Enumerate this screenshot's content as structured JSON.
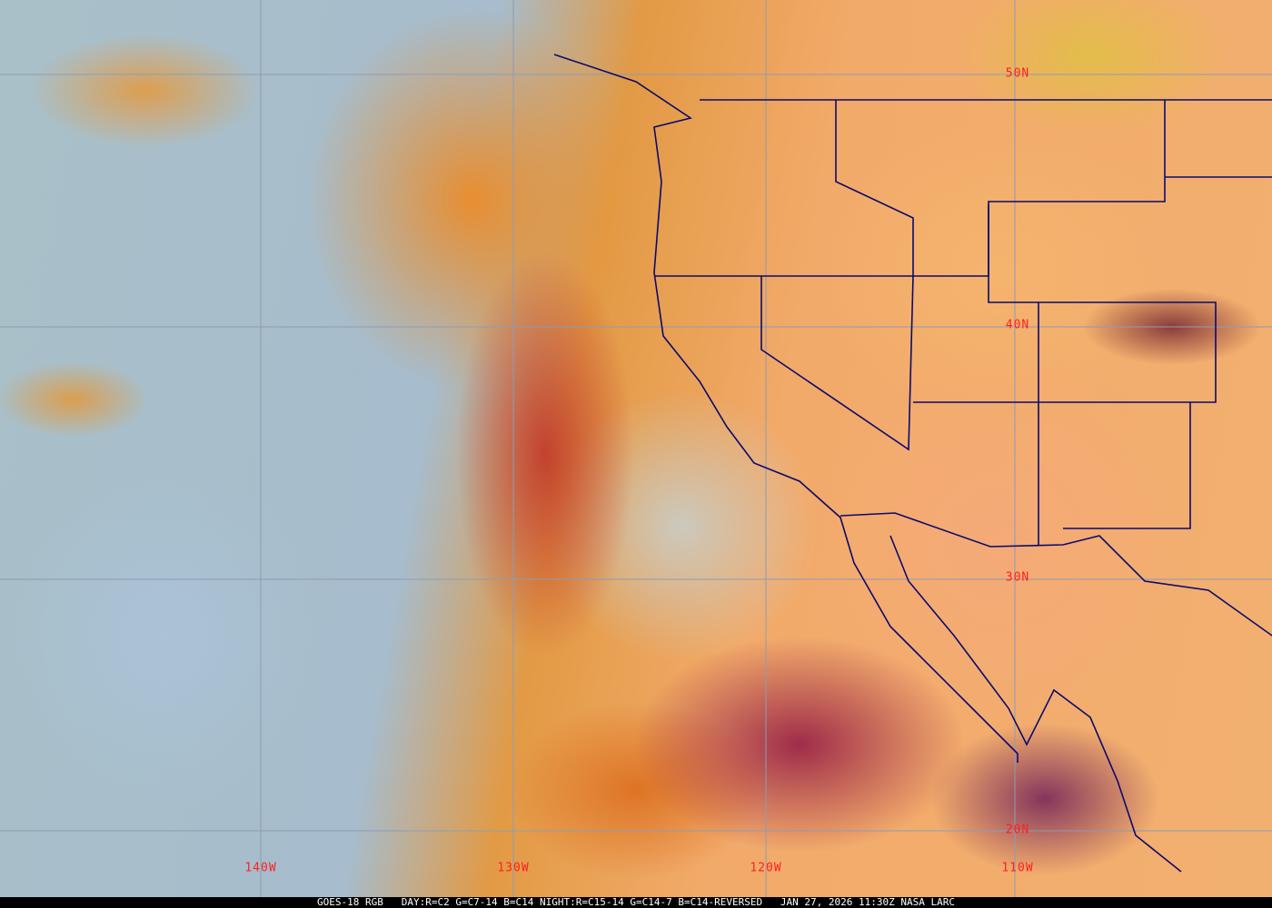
{
  "caption": "GOES-18 RGB   DAY:R=C2 G=C7-14 B=C14 NIGHT:R=C15-14 G=C14-7 B=C14-REVERSED   JAN 27, 2026 11:30Z NASA LARC",
  "grid": {
    "latitudes": [
      "50N",
      "40N",
      "30N",
      "20N"
    ],
    "longitudes": [
      "140W",
      "130W",
      "120W",
      "110W"
    ],
    "grid_color": "#8c9cb4",
    "label_color": "#ff2020",
    "border_color": "#0a0a6e"
  }
}
